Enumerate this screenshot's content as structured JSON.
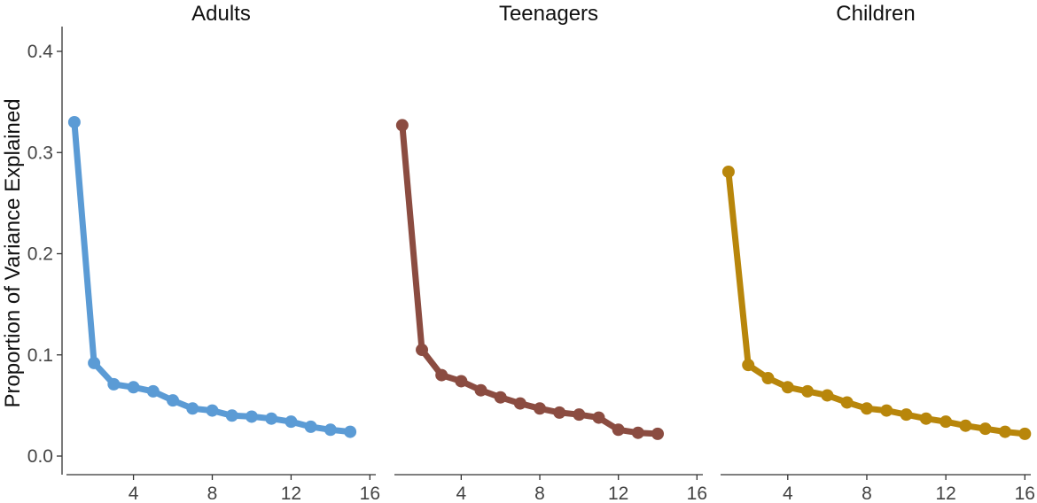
{
  "chart_data": {
    "type": "line",
    "ylabel": "Proportion of Variance Explained",
    "ylim": [
      0.0,
      0.4
    ],
    "y_ticks": [
      0.0,
      0.1,
      0.2,
      0.3,
      0.4
    ],
    "y_tick_labels": [
      "0.0",
      "0.1",
      "0.2",
      "0.3",
      "0.4"
    ],
    "grid": false,
    "panels": [
      {
        "title": "Adults",
        "color": "#5B9BD5",
        "xlim": [
          0.6,
          16.3
        ],
        "x_ticks": [
          4,
          8,
          12,
          16
        ],
        "x_tick_labels": [
          "4",
          "8",
          "12",
          "16"
        ],
        "x": [
          1,
          2,
          3,
          4,
          5,
          6,
          7,
          8,
          9,
          10,
          11,
          12,
          13,
          14,
          15
        ],
        "values": [
          0.33,
          0.092,
          0.071,
          0.068,
          0.064,
          0.055,
          0.047,
          0.045,
          0.04,
          0.039,
          0.037,
          0.034,
          0.029,
          0.026,
          0.024
        ]
      },
      {
        "title": "Teenagers",
        "color": "#8B4C41",
        "xlim": [
          0.6,
          16.3
        ],
        "x_ticks": [
          4,
          8,
          12,
          16
        ],
        "x_tick_labels": [
          "4",
          "8",
          "12",
          "16"
        ],
        "x": [
          1,
          2,
          3,
          4,
          5,
          6,
          7,
          8,
          9,
          10,
          11,
          12,
          13,
          14
        ],
        "values": [
          0.327,
          0.105,
          0.08,
          0.074,
          0.065,
          0.058,
          0.052,
          0.047,
          0.043,
          0.041,
          0.038,
          0.026,
          0.023,
          0.022
        ]
      },
      {
        "title": "Children",
        "color": "#B8860B",
        "xlim": [
          0.6,
          16.3
        ],
        "x_ticks": [
          4,
          8,
          12,
          16
        ],
        "x_tick_labels": [
          "4",
          "8",
          "12",
          "16"
        ],
        "x": [
          1,
          2,
          3,
          4,
          5,
          6,
          7,
          8,
          9,
          10,
          11,
          12,
          13,
          14,
          15,
          16
        ],
        "values": [
          0.281,
          0.09,
          0.077,
          0.068,
          0.064,
          0.06,
          0.053,
          0.047,
          0.045,
          0.041,
          0.037,
          0.034,
          0.03,
          0.027,
          0.024,
          0.022
        ]
      }
    ]
  }
}
